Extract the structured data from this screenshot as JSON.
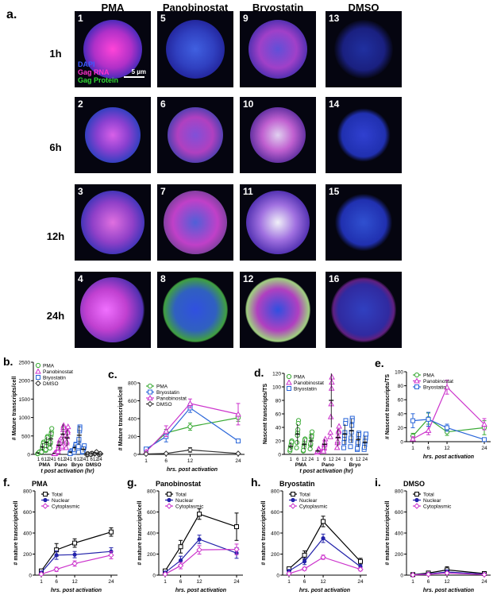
{
  "figure": {
    "panel_a_label": "a.",
    "columns": [
      "PMA",
      "Panobinostat",
      "Bryostatin",
      "DMSO"
    ],
    "rows": [
      "1h",
      "6h",
      "12h",
      "24h"
    ],
    "tile_numbers": [
      "1",
      "5",
      "9",
      "13",
      "2",
      "6",
      "10",
      "14",
      "3",
      "7",
      "11",
      "15",
      "4",
      "8",
      "12",
      "16"
    ],
    "legend_dapi": "DAPI",
    "legend_gag_rna": "Gag RNA",
    "legend_gag_protein": "Gag Protein",
    "scale_label": "5 µm",
    "colors": {
      "pma": "#3aaa35",
      "pano": "#cc33cc",
      "bryo": "#2a66d9",
      "dmso": "#333333",
      "total": "#000000",
      "nuclear": "#2222aa",
      "cytoplasmic": "#cc33cc"
    }
  },
  "chart_data": [
    {
      "panel": "b.",
      "type": "scatter",
      "ylabel": "# Mature transcripts/cell",
      "xlabel": "t post activation (hr)",
      "yticks": [
        0,
        500,
        1000,
        1500,
        2000,
        2500
      ],
      "ylim": [
        0,
        2500
      ],
      "group_labels": [
        "PMA",
        "Pano",
        "Bryo",
        "DMSO"
      ],
      "time_labels": [
        "1",
        "6",
        "12",
        "24"
      ],
      "legend": [
        "PMA",
        "Panobinostat",
        "Bryostatin",
        "DMSO"
      ],
      "series": [
        {
          "name": "PMA",
          "means": [
            40,
            200,
            320,
            420
          ]
        },
        {
          "name": "Panobinostat",
          "means": [
            30,
            250,
            550,
            450
          ]
        },
        {
          "name": "Bryostatin",
          "means": [
            60,
            180,
            520,
            140
          ]
        },
        {
          "name": "DMSO",
          "means": [
            5,
            15,
            40,
            10
          ]
        }
      ]
    },
    {
      "panel": "c.",
      "type": "line",
      "ylabel": "# Mature transcripts/cell",
      "xlabel": "hrs. post activation",
      "x": [
        1,
        6,
        12,
        24
      ],
      "yticks": [
        0,
        200,
        400,
        600,
        800
      ],
      "ylim": [
        0,
        800
      ],
      "series": [
        {
          "name": "PMA",
          "values": [
            40,
            240,
            310,
            410
          ],
          "err": [
            10,
            40,
            40,
            40
          ]
        },
        {
          "name": "Bryostatin",
          "values": [
            60,
            200,
            520,
            150
          ],
          "err": [
            10,
            60,
            50,
            20
          ]
        },
        {
          "name": "Panobinostat",
          "values": [
            30,
            260,
            570,
            450
          ],
          "err": [
            10,
            60,
            50,
            120
          ]
        },
        {
          "name": "DMSO",
          "values": [
            5,
            10,
            50,
            10
          ],
          "err": [
            2,
            5,
            25,
            5
          ]
        }
      ]
    },
    {
      "panel": "d.",
      "type": "scatter",
      "ylabel": "Nascent transcripts/TS",
      "xlabel": "t post activation (hr)",
      "yticks": [
        0,
        20,
        40,
        60,
        80,
        100,
        120
      ],
      "ylim": [
        0,
        120
      ],
      "group_labels": [
        "PMA",
        "Pano",
        "Bryo"
      ],
      "time_labels": [
        "1",
        "6",
        "12",
        "24"
      ],
      "legend": [
        "PMA",
        "Panobinostat",
        "Bryostatin"
      ],
      "series": [
        {
          "name": "PMA",
          "means": [
            12,
            30,
            15,
            20
          ]
        },
        {
          "name": "Panobinostat",
          "means": [
            5,
            15,
            80,
            25
          ]
        },
        {
          "name": "Bryostatin",
          "means": [
            30,
            35,
            22,
            18
          ]
        }
      ]
    },
    {
      "panel": "e.",
      "type": "line",
      "ylabel": "# Nascent transcripts/TS",
      "xlabel": "hrs. post activation",
      "x": [
        1,
        6,
        12,
        24
      ],
      "yticks": [
        0,
        20,
        40,
        60,
        80,
        100
      ],
      "ylim": [
        0,
        100
      ],
      "series": [
        {
          "name": "PMA",
          "values": [
            8,
            33,
            14,
            20
          ],
          "err": [
            4,
            8,
            5,
            10
          ]
        },
        {
          "name": "Panobinostat",
          "values": [
            4,
            16,
            78,
            25
          ],
          "err": [
            3,
            6,
            10,
            8
          ]
        },
        {
          "name": "Bryostatin",
          "values": [
            30,
            32,
            20,
            3
          ],
          "err": [
            10,
            10,
            5,
            2
          ]
        }
      ]
    },
    {
      "panel": "f.",
      "title": "PMA",
      "type": "line",
      "ylabel": "# mature transcripts/cell",
      "xlabel": "hrs. post activation",
      "x": [
        1,
        6,
        12,
        24
      ],
      "yticks": [
        0,
        200,
        400,
        600,
        800
      ],
      "ylim": [
        0,
        800
      ],
      "series": [
        {
          "name": "Total",
          "values": [
            40,
            240,
            305,
            410
          ],
          "err": [
            10,
            60,
            40,
            40
          ]
        },
        {
          "name": "Nuclear",
          "values": [
            25,
            190,
            195,
            225
          ],
          "err": [
            8,
            40,
            30,
            35
          ]
        },
        {
          "name": "Cytoplasmic",
          "values": [
            10,
            55,
            110,
            190
          ],
          "err": [
            5,
            20,
            25,
            35
          ]
        }
      ]
    },
    {
      "panel": "g.",
      "title": "Panobinostat",
      "type": "line",
      "ylabel": "# mature transcripts/cell",
      "xlabel": "hrs. post activation",
      "x": [
        1,
        6,
        12,
        24
      ],
      "yticks": [
        0,
        200,
        400,
        600,
        800
      ],
      "ylim": [
        0,
        800
      ],
      "series": [
        {
          "name": "Total",
          "values": [
            40,
            270,
            580,
            460
          ],
          "err": [
            10,
            60,
            50,
            130
          ]
        },
        {
          "name": "Nuclear",
          "values": [
            25,
            140,
            340,
            210
          ],
          "err": [
            8,
            40,
            40,
            50
          ]
        },
        {
          "name": "Cytoplasmic",
          "values": [
            10,
            90,
            240,
            245
          ],
          "err": [
            5,
            30,
            40,
            50
          ]
        }
      ]
    },
    {
      "panel": "h.",
      "title": "Bryostatin",
      "type": "line",
      "ylabel": "# mature transcripts/cell",
      "xlabel": "hrs. post activation",
      "x": [
        1,
        6,
        12,
        24
      ],
      "yticks": [
        0,
        200,
        400,
        600,
        800
      ],
      "ylim": [
        0,
        800
      ],
      "series": [
        {
          "name": "Total",
          "values": [
            60,
            190,
            510,
            130
          ],
          "err": [
            10,
            40,
            50,
            30
          ]
        },
        {
          "name": "Nuclear",
          "values": [
            40,
            130,
            350,
            80
          ],
          "err": [
            8,
            30,
            40,
            20
          ]
        },
        {
          "name": "Cytoplasmic",
          "values": [
            15,
            60,
            170,
            55
          ],
          "err": [
            5,
            15,
            20,
            15
          ]
        }
      ]
    },
    {
      "panel": "i.",
      "title": "DMSO",
      "type": "line",
      "ylabel": "# mature transcripts/cell",
      "xlabel": "hrs. post activation",
      "x": [
        1,
        6,
        12,
        24
      ],
      "yticks": [
        0,
        200,
        400,
        600,
        800
      ],
      "ylim": [
        0,
        800
      ],
      "series": [
        {
          "name": "Total",
          "values": [
            5,
            20,
            50,
            15
          ],
          "err": [
            2,
            8,
            30,
            8
          ]
        },
        {
          "name": "Nuclear",
          "values": [
            3,
            12,
            30,
            10
          ],
          "err": [
            2,
            6,
            20,
            5
          ]
        },
        {
          "name": "Cytoplasmic",
          "values": [
            2,
            8,
            20,
            5
          ],
          "err": [
            1,
            4,
            10,
            3
          ]
        }
      ]
    }
  ]
}
